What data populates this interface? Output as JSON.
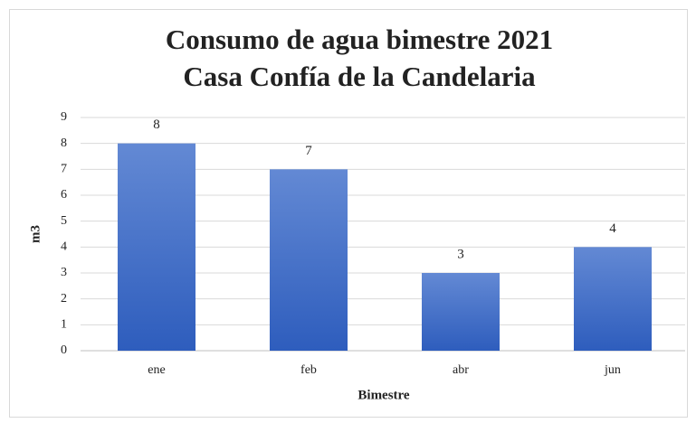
{
  "chart_data": {
    "type": "bar",
    "title": [
      "Consumo de agua bimestre 2021",
      "Casa Confía de la Candelaria"
    ],
    "x_label": "Bimestre",
    "y_label": "m3",
    "categories": [
      "ene",
      "feb",
      "abr",
      "jun"
    ],
    "values": [
      8,
      7,
      3,
      4
    ],
    "color": [
      "#6389d4",
      "#2e5dbd"
    ],
    "ylim": [
      0,
      9
    ],
    "yticks": [
      0,
      1,
      2,
      3,
      4,
      5,
      6,
      7,
      8,
      9
    ],
    "grid": true,
    "data_labels": true
  }
}
